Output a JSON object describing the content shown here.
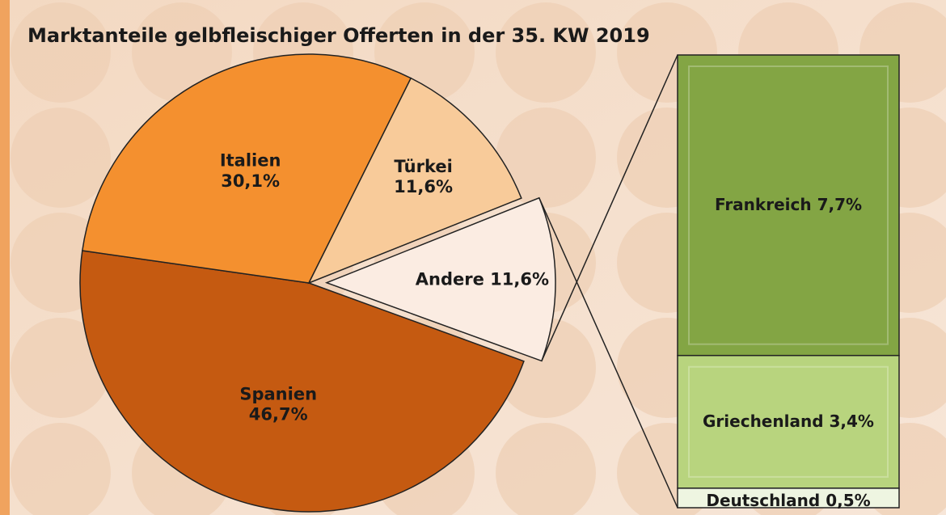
{
  "chart_data": [
    {
      "type": "pie",
      "title": "Marktanteile gelbfleischiger Offerten in der 35. KW 2019",
      "categories": [
        "Spanien",
        "Italien",
        "Türkei",
        "Andere"
      ],
      "values": [
        46.7,
        30.1,
        11.6,
        11.6
      ],
      "value_labels": [
        "46,7%",
        "30,1%",
        "11,6%",
        "11,6%"
      ],
      "colors": [
        "#c55a11",
        "#f4902f",
        "#f8cb9a",
        "#fbece2"
      ]
    },
    {
      "type": "stacked_bar",
      "categories": [
        "Frankreich",
        "Griechenland",
        "Deutschland"
      ],
      "values": [
        7.7,
        3.4,
        0.5
      ],
      "value_labels": [
        "7,7%",
        "3,4%",
        "0,5%"
      ],
      "colors": [
        "#83a544",
        "#b8d47e",
        "#eef5e1"
      ]
    }
  ]
}
